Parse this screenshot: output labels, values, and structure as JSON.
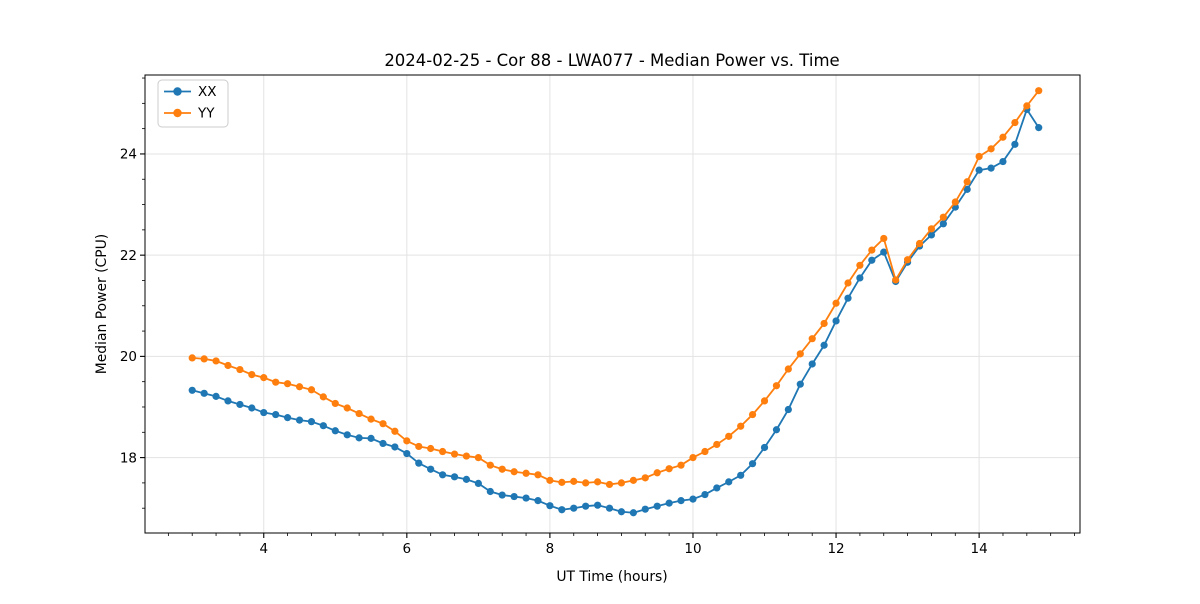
{
  "figure": {
    "background": "#ffffff",
    "accent_blue": "#1f77b4",
    "accent_orange": "#ff7f0e",
    "grid_color": "#e3e3e3",
    "spine_color": "#000000"
  },
  "chart_data": {
    "type": "line",
    "title": "2024-02-25 - Cor 88 - LWA077 - Median Power vs. Time",
    "xlabel": "UT Time (hours)",
    "ylabel": "Median Power (CPU)",
    "xlim": [
      2.34,
      15.41
    ],
    "ylim": [
      16.51,
      25.56
    ],
    "xticks": [
      4,
      6,
      8,
      10,
      12,
      14
    ],
    "yticks": [
      18,
      20,
      22,
      24
    ],
    "x_minor_step": 0.3333333,
    "y_minor_step": 0.5,
    "grid": true,
    "legend": {
      "position": "upper-left",
      "entries": [
        "XX",
        "YY"
      ]
    },
    "x": [
      3.0,
      3.167,
      3.333,
      3.5,
      3.667,
      3.833,
      4.0,
      4.167,
      4.333,
      4.5,
      4.667,
      4.833,
      5.0,
      5.167,
      5.333,
      5.5,
      5.667,
      5.833,
      6.0,
      6.167,
      6.333,
      6.5,
      6.667,
      6.833,
      7.0,
      7.167,
      7.333,
      7.5,
      7.667,
      7.833,
      8.0,
      8.167,
      8.333,
      8.5,
      8.667,
      8.833,
      9.0,
      9.167,
      9.333,
      9.5,
      9.667,
      9.833,
      10.0,
      10.167,
      10.333,
      10.5,
      10.667,
      10.833,
      11.0,
      11.167,
      11.333,
      11.5,
      11.667,
      11.833,
      12.0,
      12.167,
      12.333,
      12.5,
      12.667,
      12.833,
      13.0,
      13.167,
      13.333,
      13.5,
      13.667,
      13.833,
      14.0,
      14.167,
      14.333,
      14.5,
      14.667,
      14.833
    ],
    "series": [
      {
        "name": "XX",
        "color": "#1f77b4",
        "marker": "circle",
        "values": [
          19.33,
          19.27,
          19.21,
          19.12,
          19.05,
          18.98,
          18.89,
          18.85,
          18.79,
          18.74,
          18.71,
          18.63,
          18.53,
          18.45,
          18.39,
          18.38,
          18.28,
          18.21,
          18.08,
          17.89,
          17.77,
          17.66,
          17.62,
          17.57,
          17.49,
          17.33,
          17.26,
          17.23,
          17.2,
          17.15,
          17.05,
          16.97,
          17.0,
          17.04,
          17.06,
          17.0,
          16.93,
          16.91,
          16.98,
          17.04,
          17.1,
          17.15,
          17.18,
          17.27,
          17.4,
          17.52,
          17.65,
          17.88,
          18.2,
          18.55,
          18.95,
          19.45,
          19.85,
          20.22,
          20.7,
          21.15,
          21.55,
          21.9,
          22.06,
          21.48,
          21.86,
          22.18,
          22.4,
          22.62,
          22.95,
          23.3,
          23.68,
          23.72,
          23.85,
          24.19,
          24.88,
          24.52
        ]
      },
      {
        "name": "YY",
        "color": "#ff7f0e",
        "marker": "circle",
        "values": [
          19.97,
          19.95,
          19.91,
          19.82,
          19.74,
          19.64,
          19.58,
          19.49,
          19.46,
          19.4,
          19.34,
          19.2,
          19.07,
          18.98,
          18.87,
          18.76,
          18.67,
          18.52,
          18.33,
          18.22,
          18.18,
          18.12,
          18.07,
          18.03,
          18.0,
          17.85,
          17.77,
          17.72,
          17.69,
          17.66,
          17.55,
          17.51,
          17.53,
          17.5,
          17.52,
          17.47,
          17.5,
          17.55,
          17.6,
          17.7,
          17.78,
          17.85,
          18.0,
          18.12,
          18.26,
          18.42,
          18.62,
          18.85,
          19.12,
          19.42,
          19.75,
          20.05,
          20.35,
          20.65,
          21.05,
          21.45,
          21.8,
          22.1,
          22.33,
          21.51,
          21.91,
          22.23,
          22.52,
          22.75,
          23.05,
          23.45,
          23.95,
          24.1,
          24.33,
          24.62,
          24.95,
          25.25
        ]
      }
    ]
  }
}
